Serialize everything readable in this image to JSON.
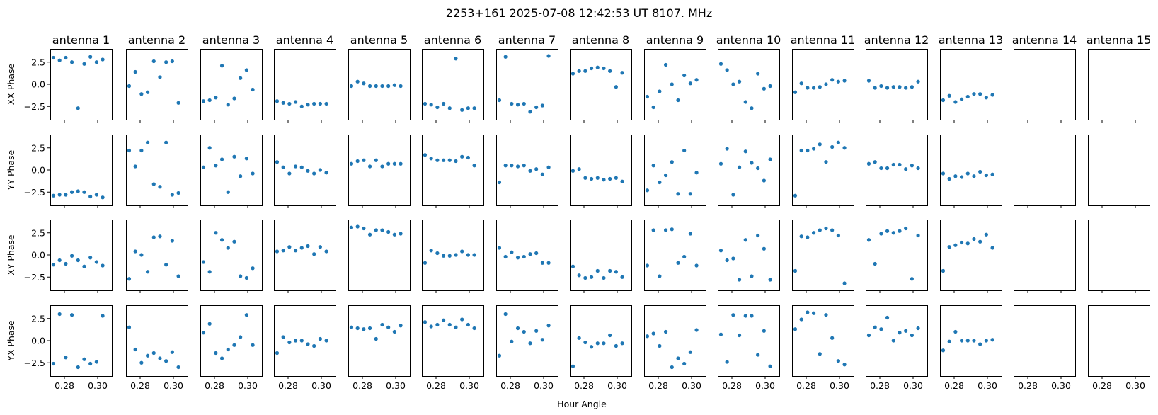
{
  "chart_data": {
    "type": "scatter",
    "title": "2253+161  2025-07-08 12:42:53 UT  8107. MHz",
    "xlabel": "Hour Angle",
    "column_titles": [
      "antenna 1",
      "antenna 2",
      "antenna 3",
      "antenna 4",
      "antenna 5",
      "antenna 6",
      "antenna 7",
      "antenna 8",
      "antenna 9",
      "antenna 10",
      "antenna 11",
      "antenna 12",
      "antenna 13",
      "antenna 14",
      "antenna 15"
    ],
    "row_labels": [
      "XX Phase",
      "YY Phase",
      "XY Phase",
      "YX Phase"
    ],
    "xlim": [
      0.2715,
      0.3085
    ],
    "ylim": [
      -4.0,
      4.0
    ],
    "x_ticks": [
      0.28,
      0.3
    ],
    "x_tick_labels": [
      "0.28",
      "0.30"
    ],
    "y_ticks": [
      2.5,
      0.0,
      -2.5
    ],
    "y_tick_labels": [
      "2.5",
      "0.0",
      "−2.5"
    ],
    "marker_color": "#1f77b4",
    "grid": false,
    "legend": "none",
    "x": [
      0.2734,
      0.2771,
      0.2808,
      0.2845,
      0.2882,
      0.2919,
      0.2956,
      0.2993,
      0.303,
      0.3067
    ],
    "panels": [
      [
        [
          3.0,
          2.7,
          3.0,
          2.5,
          -2.7,
          2.3,
          3.1,
          2.5,
          2.8,
          null
        ],
        [
          -0.2,
          1.4,
          -1.1,
          -0.9,
          2.6,
          0.8,
          2.5,
          2.6,
          -2.1,
          null
        ],
        [
          -1.9,
          -1.8,
          -1.5,
          2.1,
          -2.3,
          -1.6,
          0.7,
          1.6,
          -0.6,
          null
        ],
        [
          -1.9,
          -2.1,
          -2.2,
          -2.0,
          -2.5,
          -2.3,
          -2.2,
          -2.2,
          -2.2,
          null
        ],
        [
          -0.2,
          0.3,
          0.1,
          -0.2,
          -0.2,
          -0.2,
          -0.2,
          -0.1,
          -0.2,
          null
        ],
        [
          -2.2,
          -2.3,
          -2.6,
          -2.2,
          -2.7,
          2.9,
          -2.9,
          -2.7,
          -2.7,
          null
        ],
        [
          -1.8,
          3.1,
          -2.2,
          -2.3,
          -2.2,
          -3.1,
          -2.6,
          -2.4,
          3.2,
          null
        ],
        [
          1.2,
          1.5,
          1.5,
          1.8,
          1.9,
          1.8,
          1.5,
          -0.3,
          1.3,
          null
        ],
        [
          -1.4,
          -2.6,
          -0.8,
          2.2,
          0.0,
          -1.8,
          1.0,
          0.1,
          0.5,
          null
        ],
        [
          2.3,
          1.6,
          0.0,
          0.3,
          -2.0,
          -2.7,
          1.2,
          -0.5,
          -0.2,
          null
        ],
        [
          -0.9,
          0.1,
          -0.4,
          -0.4,
          -0.3,
          0.0,
          0.5,
          0.3,
          0.4,
          null
        ],
        [
          0.4,
          -0.4,
          -0.2,
          -0.4,
          -0.3,
          -0.3,
          -0.4,
          -0.3,
          0.3,
          null
        ],
        [
          -1.8,
          -1.3,
          -2.0,
          -1.7,
          -1.4,
          -1.1,
          -1.1,
          -1.5,
          -1.2,
          null
        ],
        [],
        []
      ],
      [
        [
          -2.9,
          -2.8,
          -2.8,
          -2.5,
          -2.4,
          -2.5,
          -3.0,
          -2.8,
          -3.1,
          null
        ],
        [
          2.2,
          0.4,
          2.2,
          3.1,
          -1.6,
          -1.9,
          3.1,
          -2.8,
          -2.6,
          null
        ],
        [
          0.3,
          2.5,
          0.5,
          1.2,
          -2.5,
          1.5,
          -0.7,
          1.3,
          -0.4,
          null
        ],
        [
          0.9,
          0.3,
          -0.4,
          0.4,
          0.3,
          -0.1,
          -0.4,
          0.0,
          -0.3,
          null
        ],
        [
          0.7,
          1.0,
          1.1,
          0.4,
          1.1,
          0.4,
          0.7,
          0.7,
          0.7,
          null
        ],
        [
          1.7,
          1.3,
          1.1,
          1.1,
          1.1,
          1.0,
          1.5,
          1.4,
          0.5,
          null
        ],
        [
          -1.4,
          0.5,
          0.5,
          0.4,
          0.5,
          -0.1,
          0.1,
          -0.5,
          0.3,
          null
        ],
        [
          -0.1,
          0.1,
          -0.9,
          -1.0,
          -0.9,
          -1.1,
          -1.0,
          -0.9,
          -1.3,
          null
        ],
        [
          -2.3,
          0.5,
          -1.4,
          -0.6,
          0.9,
          -2.7,
          2.2,
          -2.7,
          -0.3,
          null
        ],
        [
          0.7,
          2.4,
          -2.8,
          0.3,
          2.1,
          0.8,
          0.2,
          -1.2,
          1.2,
          null
        ],
        [
          -2.9,
          2.2,
          2.2,
          2.4,
          2.9,
          0.9,
          2.6,
          3.1,
          2.5,
          null
        ],
        [
          0.7,
          0.9,
          0.2,
          0.2,
          0.6,
          0.6,
          0.1,
          0.5,
          0.2,
          null
        ],
        [
          -0.4,
          -1.0,
          -0.7,
          -0.8,
          -0.4,
          -0.7,
          -0.2,
          -0.6,
          -0.5,
          null
        ],
        [],
        []
      ],
      [
        [
          -1.1,
          -0.6,
          -1.0,
          -0.1,
          -0.6,
          -1.3,
          -0.3,
          -0.8,
          -1.2,
          null
        ],
        [
          -2.7,
          0.4,
          0.0,
          -1.9,
          2.0,
          2.1,
          -1.1,
          1.6,
          -2.4,
          null
        ],
        [
          -0.8,
          -1.9,
          2.5,
          1.7,
          0.8,
          1.5,
          -2.4,
          -2.6,
          -1.5,
          null
        ],
        [
          0.4,
          0.5,
          0.9,
          0.5,
          0.8,
          1.0,
          0.1,
          0.9,
          0.4,
          null
        ],
        [
          3.1,
          3.2,
          3.0,
          2.3,
          2.8,
          2.8,
          2.6,
          2.3,
          2.4,
          null
        ],
        [
          -0.9,
          0.5,
          0.2,
          -0.1,
          -0.1,
          0.0,
          0.4,
          0.0,
          0.0,
          null
        ],
        [
          0.8,
          -0.2,
          0.3,
          -0.3,
          -0.2,
          0.1,
          0.2,
          -0.9,
          -0.9,
          null
        ],
        [
          -1.3,
          -2.3,
          -2.6,
          -2.5,
          -1.8,
          -2.6,
          -1.8,
          -1.9,
          -2.5,
          null
        ],
        [
          -1.2,
          2.8,
          -2.4,
          2.8,
          2.9,
          -0.9,
          -0.2,
          2.4,
          -1.2,
          null
        ],
        [
          0.5,
          -0.6,
          -0.4,
          -2.8,
          1.7,
          -2.4,
          2.2,
          0.7,
          -2.8,
          null
        ],
        [
          -1.8,
          2.1,
          2.0,
          2.5,
          2.8,
          3.0,
          2.8,
          2.2,
          -3.2,
          null
        ],
        [
          1.7,
          -1.0,
          2.4,
          2.7,
          2.5,
          2.7,
          3.0,
          -2.7,
          2.2,
          null
        ],
        [
          -1.8,
          0.9,
          1.1,
          1.4,
          1.3,
          1.8,
          1.5,
          2.3,
          0.8,
          null
        ],
        [],
        []
      ],
      [
        [
          -2.6,
          3.0,
          -1.9,
          2.9,
          -3.0,
          -2.1,
          -2.6,
          -2.4,
          2.8,
          null
        ],
        [
          1.5,
          -1.0,
          -2.5,
          -1.7,
          -1.4,
          -2.0,
          -2.3,
          -1.3,
          -3.0,
          null
        ],
        [
          0.9,
          1.9,
          -1.4,
          -2.0,
          -1.0,
          -0.5,
          0.4,
          2.9,
          -0.5,
          null
        ],
        [
          -1.4,
          0.4,
          -0.2,
          0.0,
          0.0,
          -0.4,
          -0.6,
          0.2,
          0.0,
          null
        ],
        [
          1.5,
          1.4,
          1.3,
          1.4,
          0.2,
          1.8,
          1.5,
          1.0,
          1.7,
          null
        ],
        [
          2.1,
          1.6,
          1.8,
          2.3,
          1.8,
          1.5,
          2.4,
          1.8,
          1.4,
          null
        ],
        [
          -1.7,
          3.0,
          -0.1,
          1.4,
          1.0,
          -0.3,
          1.1,
          0.1,
          1.7,
          null
        ],
        [
          -2.9,
          0.3,
          -0.2,
          -0.7,
          -0.3,
          -0.3,
          0.6,
          -0.6,
          -0.3,
          null
        ],
        [
          0.5,
          0.8,
          -0.6,
          1.0,
          -3.0,
          -2.0,
          -2.6,
          -1.3,
          1.2,
          null
        ],
        [
          0.7,
          -2.4,
          2.9,
          0.6,
          2.8,
          2.8,
          -1.6,
          1.1,
          -2.9,
          null
        ],
        [
          1.3,
          2.4,
          3.2,
          3.1,
          -1.5,
          2.9,
          0.3,
          -2.3,
          -2.7,
          null
        ],
        [
          0.6,
          1.5,
          1.3,
          2.6,
          0.0,
          0.9,
          1.1,
          0.6,
          1.4,
          null
        ],
        [
          -1.1,
          -0.1,
          1.0,
          0.0,
          0.0,
          0.0,
          -0.4,
          0.0,
          0.1,
          null
        ],
        [],
        []
      ]
    ]
  }
}
